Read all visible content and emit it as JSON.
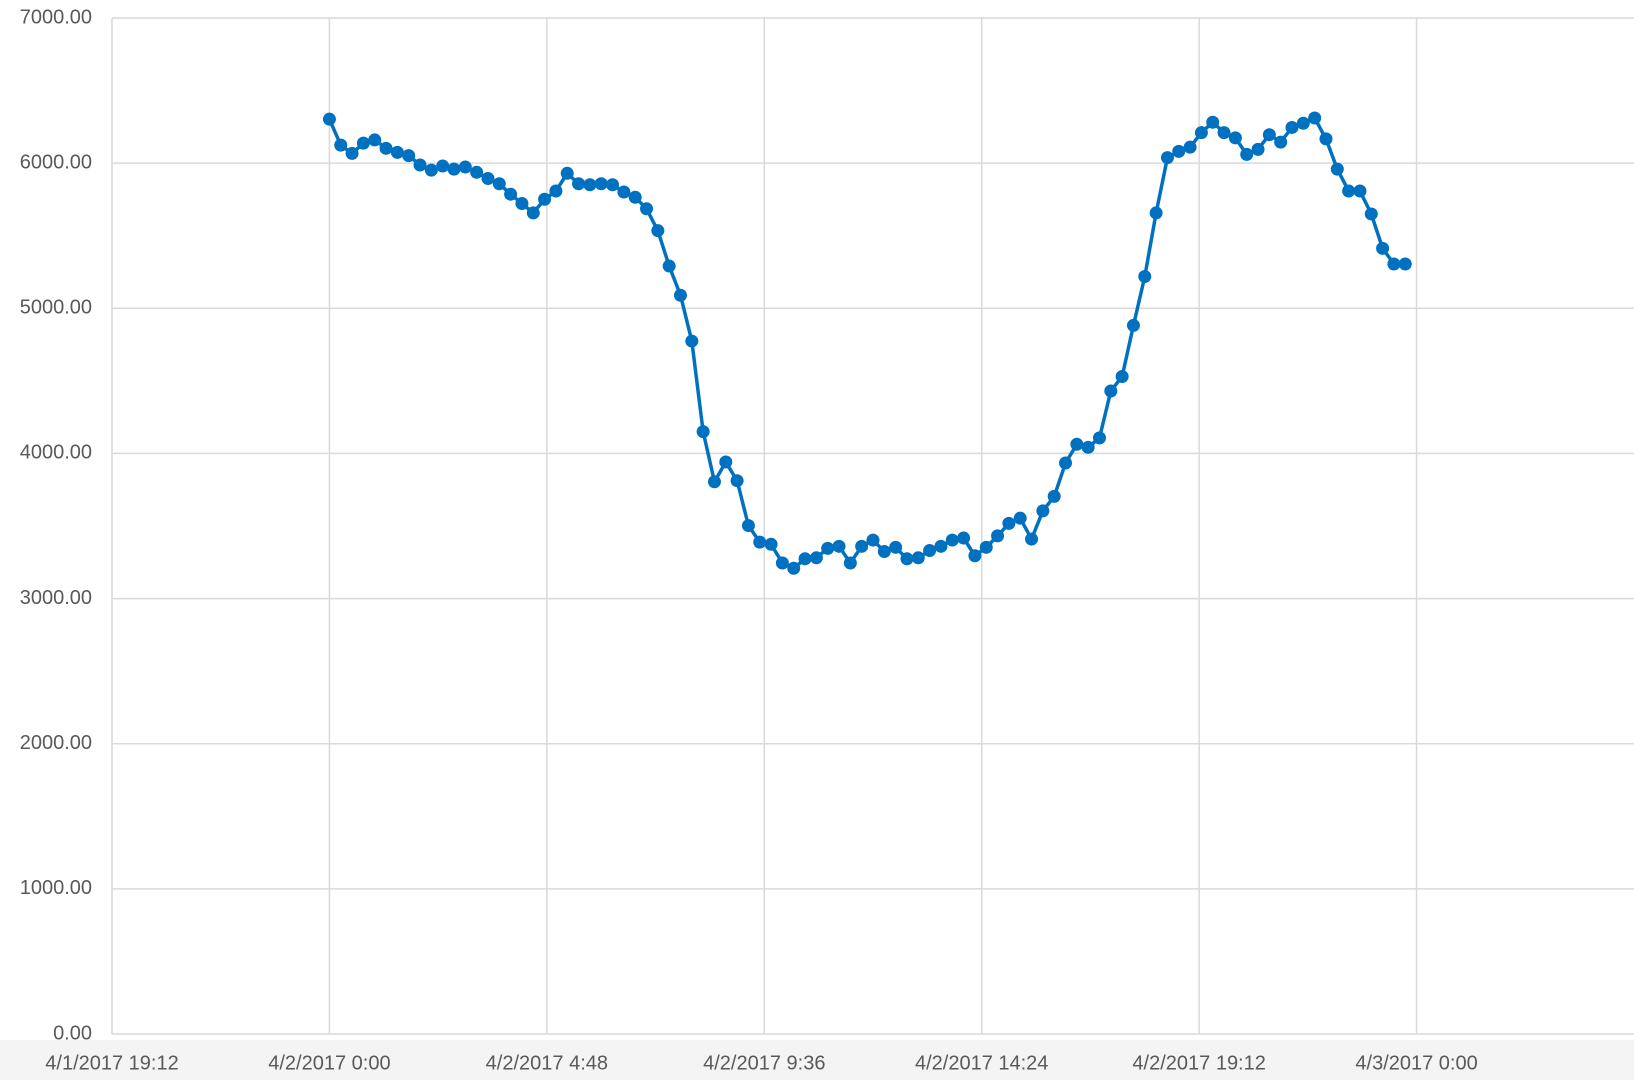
{
  "chart_data": {
    "type": "line",
    "x": [
      "2017-04-02T00:00",
      "2017-04-02T00:15",
      "2017-04-02T00:30",
      "2017-04-02T00:45",
      "2017-04-02T01:00",
      "2017-04-02T01:15",
      "2017-04-02T01:30",
      "2017-04-02T01:45",
      "2017-04-02T02:00",
      "2017-04-02T02:15",
      "2017-04-02T02:30",
      "2017-04-02T02:45",
      "2017-04-02T03:00",
      "2017-04-02T03:15",
      "2017-04-02T03:30",
      "2017-04-02T03:45",
      "2017-04-02T04:00",
      "2017-04-02T04:15",
      "2017-04-02T04:30",
      "2017-04-02T04:45",
      "2017-04-02T05:00",
      "2017-04-02T05:15",
      "2017-04-02T05:30",
      "2017-04-02T05:45",
      "2017-04-02T06:00",
      "2017-04-02T06:15",
      "2017-04-02T06:30",
      "2017-04-02T06:45",
      "2017-04-02T07:00",
      "2017-04-02T07:15",
      "2017-04-02T07:30",
      "2017-04-02T07:45",
      "2017-04-02T08:00",
      "2017-04-02T08:15",
      "2017-04-02T08:30",
      "2017-04-02T08:45",
      "2017-04-02T09:00",
      "2017-04-02T09:15",
      "2017-04-02T09:30",
      "2017-04-02T09:45",
      "2017-04-02T10:00",
      "2017-04-02T10:15",
      "2017-04-02T10:30",
      "2017-04-02T10:45",
      "2017-04-02T11:00",
      "2017-04-02T11:15",
      "2017-04-02T11:30",
      "2017-04-02T11:45",
      "2017-04-02T12:00",
      "2017-04-02T12:15",
      "2017-04-02T12:30",
      "2017-04-02T12:45",
      "2017-04-02T13:00",
      "2017-04-02T13:15",
      "2017-04-02T13:30",
      "2017-04-02T13:45",
      "2017-04-02T14:00",
      "2017-04-02T14:15",
      "2017-04-02T14:30",
      "2017-04-02T14:45",
      "2017-04-02T15:00",
      "2017-04-02T15:15",
      "2017-04-02T15:30",
      "2017-04-02T15:45",
      "2017-04-02T16:00",
      "2017-04-02T16:15",
      "2017-04-02T16:30",
      "2017-04-02T16:45",
      "2017-04-02T17:00",
      "2017-04-02T17:15",
      "2017-04-02T17:30",
      "2017-04-02T17:45",
      "2017-04-02T18:00",
      "2017-04-02T18:15",
      "2017-04-02T18:30",
      "2017-04-02T18:45",
      "2017-04-02T19:00",
      "2017-04-02T19:15",
      "2017-04-02T19:30",
      "2017-04-02T19:45",
      "2017-04-02T20:00",
      "2017-04-02T20:15",
      "2017-04-02T20:30",
      "2017-04-02T20:45",
      "2017-04-02T21:00",
      "2017-04-02T21:15",
      "2017-04-02T21:30",
      "2017-04-02T21:45",
      "2017-04-02T22:00",
      "2017-04-02T22:15",
      "2017-04-02T22:30",
      "2017-04-02T22:45",
      "2017-04-02T23:00",
      "2017-04-02T23:15",
      "2017-04-02T23:30",
      "2017-04-02T23:45"
    ],
    "series": [
      {
        "color": "#0070c0",
        "values": [
          6303,
          6124,
          6067,
          6138,
          6160,
          6102,
          6074,
          6052,
          5987,
          5952,
          5980,
          5959,
          5973,
          5937,
          5894,
          5858,
          5786,
          5722,
          5657,
          5751,
          5808,
          5930,
          5858,
          5851,
          5858,
          5851,
          5801,
          5765,
          5686,
          5535,
          5291,
          5090,
          4774,
          4150,
          3805,
          3941,
          3812,
          3503,
          3389,
          3374,
          3245,
          3209,
          3274,
          3281,
          3346,
          3360,
          3245,
          3360,
          3403,
          3324,
          3353,
          3274,
          3281,
          3331,
          3360,
          3403,
          3417,
          3295,
          3353,
          3432,
          3518,
          3554,
          3410,
          3604,
          3704,
          3934,
          4063,
          4042,
          4107,
          4430,
          4530,
          4882,
          5219,
          5657,
          6038,
          6081,
          6110,
          6210,
          6282,
          6210,
          6174,
          6060,
          6095,
          6196,
          6145,
          6246,
          6275,
          6311,
          6167,
          5959,
          5808,
          5808,
          5650,
          5413,
          5305,
          5305
        ]
      }
    ],
    "xlim": [
      "2017-04-01T19:12",
      "2017-04-03T04:48"
    ],
    "xticks": [
      {
        "value": "2017-04-01T19:12",
        "label": "4/1/2017 19:12"
      },
      {
        "value": "2017-04-02T00:00",
        "label": "4/2/2017 0:00"
      },
      {
        "value": "2017-04-02T04:48",
        "label": "4/2/2017 4:48"
      },
      {
        "value": "2017-04-02T09:36",
        "label": "4/2/2017 9:36"
      },
      {
        "value": "2017-04-02T14:24",
        "label": "4/2/2017 14:24"
      },
      {
        "value": "2017-04-02T19:12",
        "label": "4/2/2017 19:12"
      },
      {
        "value": "2017-04-03T00:00",
        "label": "4/3/2017 0:00"
      }
    ],
    "ylim": [
      0,
      7000
    ],
    "yticks": [
      {
        "value": 0,
        "label": "0.00"
      },
      {
        "value": 1000,
        "label": "1000.00"
      },
      {
        "value": 2000,
        "label": "2000.00"
      },
      {
        "value": 3000,
        "label": "3000.00"
      },
      {
        "value": 4000,
        "label": "4000.00"
      },
      {
        "value": 5000,
        "label": "5000.00"
      },
      {
        "value": 6000,
        "label": "6000.00"
      },
      {
        "value": 7000,
        "label": "7000.00"
      }
    ],
    "grid": true
  }
}
